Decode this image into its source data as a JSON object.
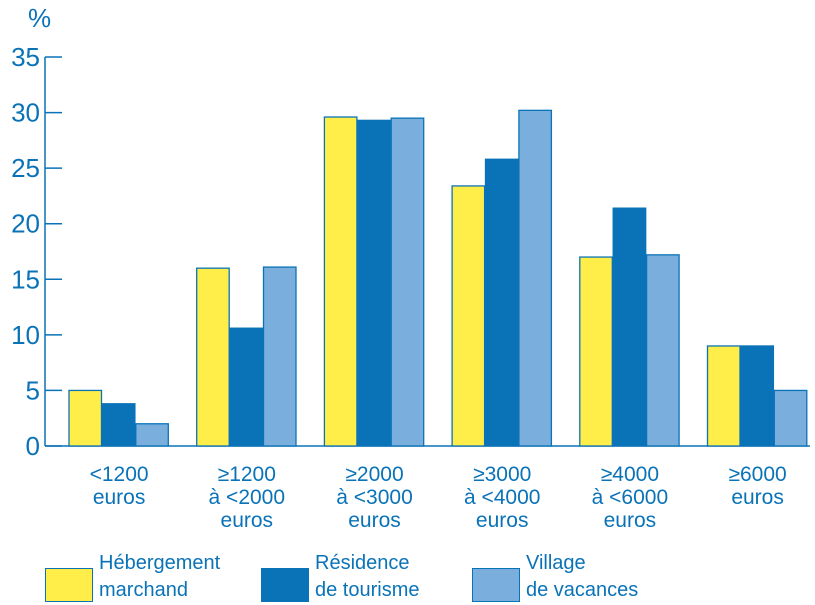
{
  "chart_data": {
    "type": "bar",
    "unit_label": "%",
    "ylim": [
      0,
      35
    ],
    "yticks": [
      "0",
      "5",
      "10",
      "15",
      "20",
      "25",
      "30",
      "35"
    ],
    "grid": false,
    "legend_position": "bottom",
    "categories": [
      [
        "<1200",
        "euros"
      ],
      [
        "≥1200",
        "à <2000",
        "euros"
      ],
      [
        "≥2000",
        "à <3000",
        "euros"
      ],
      [
        "≥3000",
        "à <4000",
        "euros"
      ],
      [
        "≥4000",
        "à <6000",
        "euros"
      ],
      [
        "≥6000",
        "euros"
      ]
    ],
    "series": [
      {
        "name": "Hébergement marchand",
        "legend_lines": [
          "Hébergement",
          "marchand"
        ],
        "color": "#ffed4a",
        "values": [
          5,
          16,
          29.6,
          23.4,
          17,
          9
        ]
      },
      {
        "name": "Résidence de tourisme",
        "legend_lines": [
          "Résidence",
          "de tourisme"
        ],
        "color": "#0a73b8",
        "values": [
          3.8,
          10.6,
          29.3,
          25.8,
          21.4,
          9
        ]
      },
      {
        "name": "Village de vacances",
        "legend_lines": [
          "Village",
          "de vacances"
        ],
        "color": "#7aaedc",
        "values": [
          2,
          16.1,
          29.5,
          30.2,
          17.2,
          5
        ]
      }
    ],
    "axis_color": "#0a73b8",
    "bar_border_color": "#0a73b8"
  }
}
